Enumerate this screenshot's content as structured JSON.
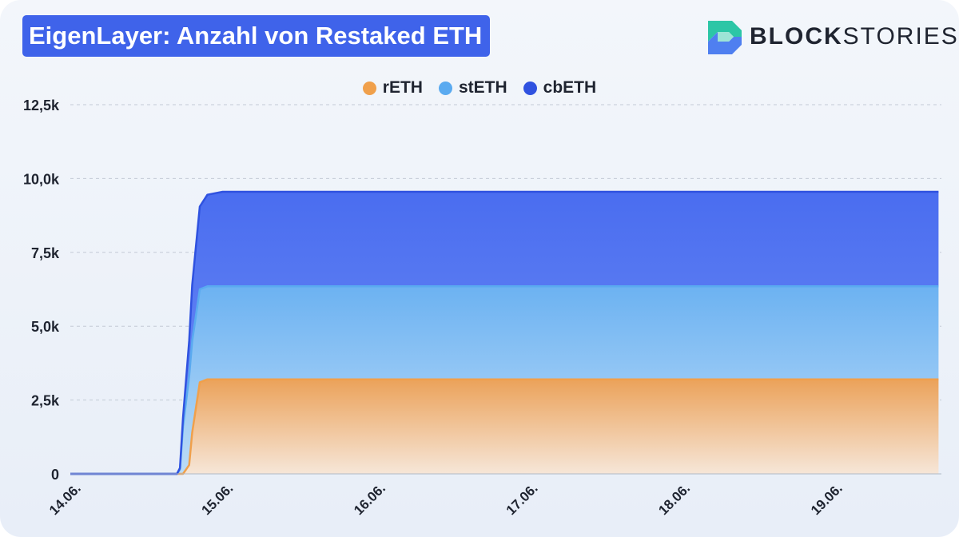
{
  "header": {
    "title": "EigenLayer: Anzahl von Restaked ETH"
  },
  "brand": {
    "name_bold": "BLOCK",
    "name_light": "STORIES",
    "icon": "blockstories-logo-icon",
    "colors": [
      "#2cc6a6",
      "#4f7ff0"
    ]
  },
  "chart_data": {
    "type": "area",
    "stacked": true,
    "categories": [
      "14.06.",
      "15.06.",
      "16.06.",
      "17.06.",
      "18.06.",
      "19.06."
    ],
    "x": [
      0,
      0.6,
      0.7,
      0.72,
      0.74,
      0.78,
      0.8,
      0.85,
      0.9,
      1,
      1.5,
      2,
      3,
      4,
      5,
      5.7
    ],
    "series": [
      {
        "name": "rETH",
        "color": "#f0a04b",
        "values": [
          0,
          0,
          0,
          0,
          0,
          300,
          1400,
          3100,
          3200,
          3200,
          3200,
          3200,
          3200,
          3200,
          3200,
          3200
        ]
      },
      {
        "name": "stETH",
        "color": "#5aaaf0",
        "values": [
          0,
          0,
          0,
          150,
          1600,
          3000,
          3100,
          3150,
          3150,
          3150,
          3150,
          3150,
          3150,
          3150,
          3150,
          3150
        ]
      },
      {
        "name": "cbETH",
        "color": "#2f52e0",
        "values": [
          0,
          0,
          0,
          50,
          300,
          1200,
          1900,
          2800,
          3100,
          3200,
          3200,
          3200,
          3200,
          3200,
          3200,
          3200
        ]
      }
    ],
    "y_ticks": [
      {
        "value": 0,
        "label": "0"
      },
      {
        "value": 2500,
        "label": "2,5k"
      },
      {
        "value": 5000,
        "label": "5,0k"
      },
      {
        "value": 7500,
        "label": "7,5k"
      },
      {
        "value": 10000,
        "label": "10,0k"
      },
      {
        "value": 12500,
        "label": "12,5k"
      }
    ],
    "ylim": [
      0,
      12500
    ],
    "xlim": [
      0,
      5.7
    ],
    "xlabel": "",
    "ylabel": "",
    "grid": true,
    "legend": "top-center"
  }
}
